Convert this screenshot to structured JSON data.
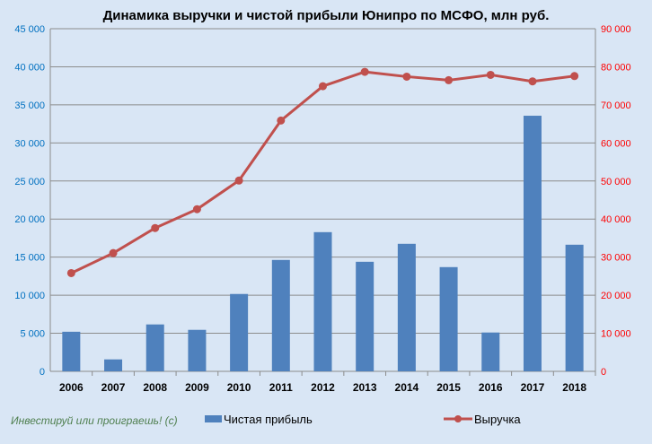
{
  "chart_data": {
    "type": "bar+line",
    "title": "Динамика выручки  и чистой прибыли  Юнипро по МСФО, млн руб.",
    "categories": [
      "2006",
      "2007",
      "2008",
      "2009",
      "2010",
      "2011",
      "2012",
      "2013",
      "2014",
      "2015",
      "2016",
      "2017",
      "2018"
    ],
    "series": [
      {
        "name": "Чистая прибыль",
        "type": "bar",
        "axis": "left",
        "color": "#4f81bd",
        "values": [
          5200,
          1570,
          6160,
          5450,
          10160,
          14630,
          18280,
          14390,
          16750,
          13690,
          5100,
          33570,
          16630
        ]
      },
      {
        "name": "Выручка",
        "type": "line",
        "axis": "right",
        "color": "#c0504d",
        "values": [
          25800,
          31060,
          37650,
          42590,
          50120,
          65880,
          74900,
          78670,
          77410,
          76470,
          77880,
          76160,
          77570
        ]
      }
    ],
    "left_axis": {
      "ylim": [
        0,
        45000
      ],
      "ticks": [
        "0",
        "5 000",
        "10 000",
        "15 000",
        "20 000",
        "25 000",
        "30 000",
        "35 000",
        "40 000",
        "45 000"
      ],
      "color": "#0070c0"
    },
    "right_axis": {
      "ylim": [
        0,
        90000
      ],
      "ticks": [
        "0",
        "10 000",
        "20 000",
        "30 000",
        "40 000",
        "50 000",
        "60 000",
        "70 000",
        "80 000",
        "90 000"
      ],
      "color": "#ff0000"
    },
    "grid": true,
    "legend": "bottom"
  },
  "watermark": "Инвестируй или проиграешь! (с)"
}
